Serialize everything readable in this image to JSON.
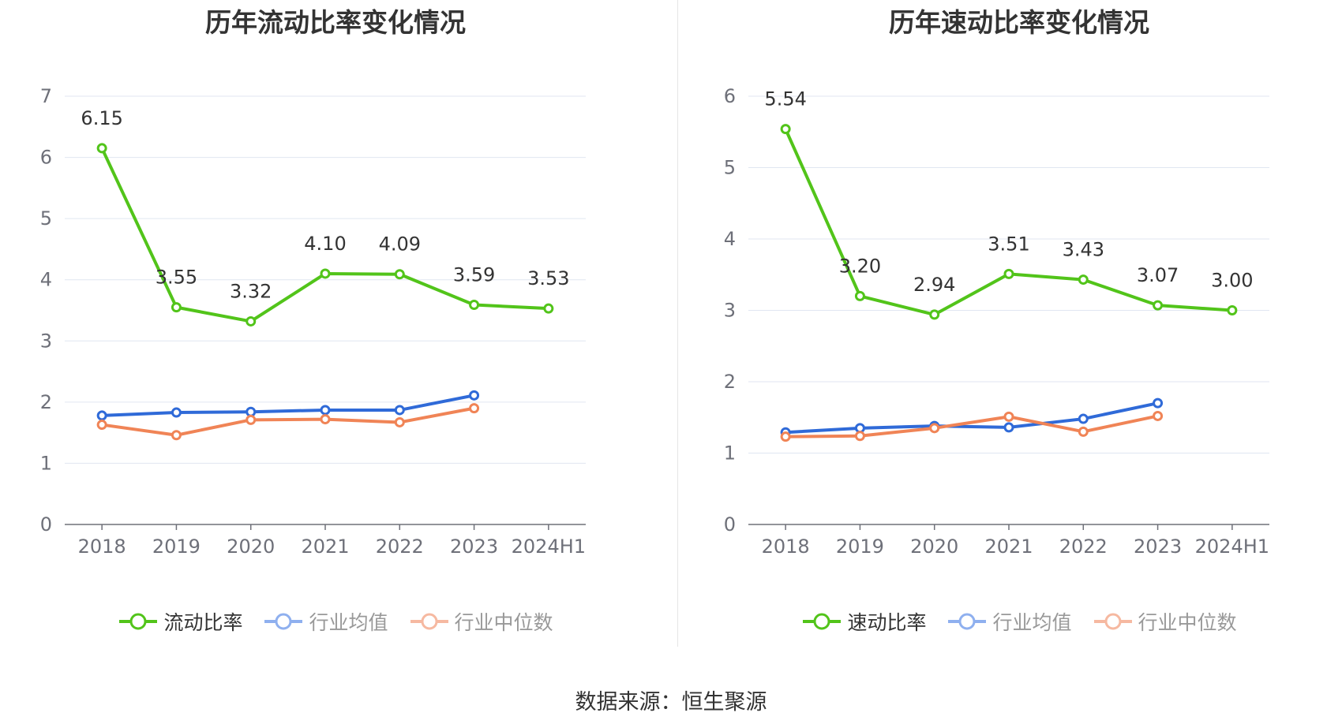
{
  "colors": {
    "main_left": "#52c41a",
    "main_right": "#52c41a",
    "industry_avg": "#2f6ad8",
    "industry_median": "#f08456",
    "legend_avg": "#8fb0ef",
    "legend_median": "#f6b9a1",
    "grid": "#e0e6f1",
    "axis": "#6e7079"
  },
  "source": "数据来源：恒生聚源",
  "chart_data": [
    {
      "type": "line",
      "title": "历年流动比率变化情况",
      "categories": [
        "2018",
        "2019",
        "2020",
        "2021",
        "2022",
        "2023",
        "2024H1"
      ],
      "ylim": [
        0,
        7
      ],
      "yticks": [
        "0",
        "1",
        "2",
        "3",
        "4",
        "5",
        "6",
        "7"
      ],
      "series": [
        {
          "name": "流动比率",
          "values": [
            6.15,
            3.55,
            3.32,
            4.1,
            4.09,
            3.59,
            3.53
          ],
          "labels": [
            "6.15",
            "3.55",
            "3.32",
            "4.10",
            "4.09",
            "3.59",
            "3.53"
          ],
          "color_key": "main_left"
        },
        {
          "name": "行业均值",
          "values": [
            1.78,
            1.83,
            1.84,
            1.87,
            1.87,
            2.11,
            null
          ],
          "color_key": "industry_avg"
        },
        {
          "name": "行业中位数",
          "values": [
            1.63,
            1.46,
            1.71,
            1.72,
            1.67,
            1.9,
            null
          ],
          "color_key": "industry_median"
        }
      ]
    },
    {
      "type": "line",
      "title": "历年速动比率变化情况",
      "categories": [
        "2018",
        "2019",
        "2020",
        "2021",
        "2022",
        "2023",
        "2024H1"
      ],
      "ylim": [
        0,
        6
      ],
      "yticks": [
        "0",
        "1",
        "2",
        "3",
        "4",
        "5",
        "6"
      ],
      "series": [
        {
          "name": "速动比率",
          "values": [
            5.54,
            3.2,
            2.94,
            3.51,
            3.43,
            3.07,
            3.0
          ],
          "labels": [
            "5.54",
            "3.20",
            "2.94",
            "3.51",
            "3.43",
            "3.07",
            "3.00"
          ],
          "color_key": "main_right"
        },
        {
          "name": "行业均值",
          "values": [
            1.29,
            1.35,
            1.38,
            1.36,
            1.48,
            1.7,
            null
          ],
          "color_key": "industry_avg"
        },
        {
          "name": "行业中位数",
          "values": [
            1.23,
            1.24,
            1.35,
            1.51,
            1.3,
            1.52,
            null
          ],
          "color_key": "industry_median"
        }
      ]
    }
  ]
}
